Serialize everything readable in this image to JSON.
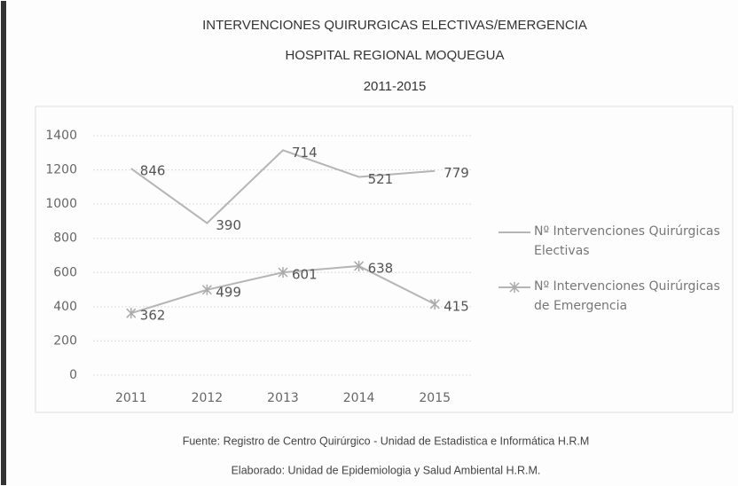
{
  "chart_data": {
    "type": "line",
    "stacked": true,
    "title": "INTERVENCIONES QUIRURGICAS ELECTIVAS/EMERGENCIA",
    "subtitle": [
      "HOSPITAL REGIONAL MOQUEGUA",
      "2011-2015"
    ],
    "categories": [
      "2011",
      "2012",
      "2013",
      "2014",
      "2015"
    ],
    "series": [
      {
        "name": "Nº Intervenciones Quirúrgicas Electivas",
        "color": "#b5b5b5",
        "marker": "none",
        "values": [
          846,
          390,
          714,
          521,
          779
        ]
      },
      {
        "name": "Nº Intervenciones Quirúrgicas de Emergencia",
        "color": "#b5b5b5",
        "marker": "star",
        "values": [
          362,
          499,
          601,
          638,
          415
        ]
      }
    ],
    "ylim": [
      0,
      1400
    ],
    "yticks": [
      0,
      200,
      400,
      600,
      800,
      1000,
      1200,
      1400
    ],
    "grid": true,
    "legend": "right",
    "notes": [
      "Fuente: Registro de Centro Quirúrgico - Unidad de Estadistica e Informática H.R.M",
      "Elaborado: Unidad de Epidemiologia y Salud Ambiental H.R.M."
    ]
  }
}
